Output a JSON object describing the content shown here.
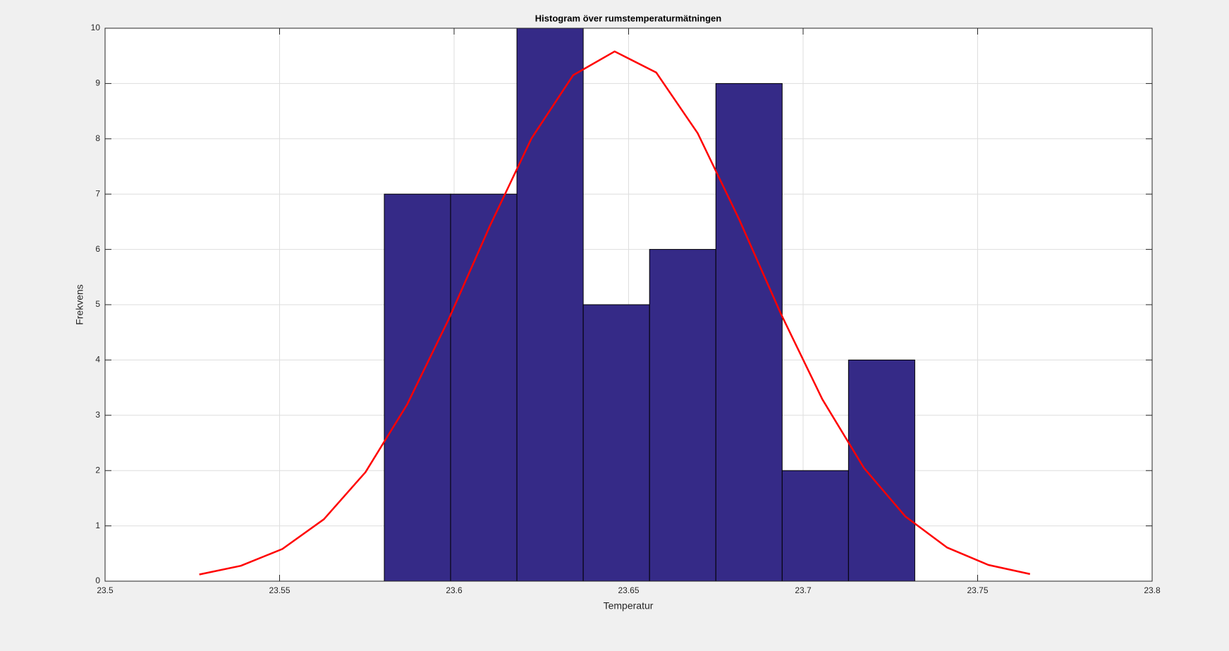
{
  "chart_data": {
    "type": "histogram",
    "title": "Histogram över rumstemperaturmätningen",
    "xlabel": "Temperatur",
    "ylabel": "Frekvens",
    "bins": [
      23.58,
      23.599,
      23.618,
      23.637,
      23.656,
      23.675,
      23.694,
      23.713,
      23.732
    ],
    "values": [
      7,
      7,
      10,
      5,
      6,
      9,
      2,
      4
    ],
    "color": "#352a87",
    "fit": {
      "color": "#ff0000",
      "x": [
        23.527,
        23.5389,
        23.5508,
        23.5627,
        23.5746,
        23.5865,
        23.5984,
        23.6103,
        23.6222,
        23.6341,
        23.646,
        23.6579,
        23.6698,
        23.6817,
        23.6936,
        23.7055,
        23.7174,
        23.7293,
        23.7412,
        23.7531,
        23.765
      ],
      "values": [
        0.121,
        0.278,
        0.582,
        1.12,
        1.97,
        3.19,
        4.73,
        6.43,
        8.01,
        9.15,
        9.58,
        9.2,
        8.1,
        6.54,
        4.84,
        3.29,
        2.05,
        1.17,
        0.61,
        0.293,
        0.129
      ]
    },
    "xlim": [
      23.5,
      23.8
    ],
    "xticks": [
      23.5,
      23.55,
      23.6,
      23.65,
      23.7,
      23.75,
      23.8
    ],
    "ylim": [
      0,
      10
    ],
    "yticks": [
      0,
      1,
      2,
      3,
      4,
      5,
      6,
      7,
      8,
      9,
      10
    ],
    "grid": true
  }
}
